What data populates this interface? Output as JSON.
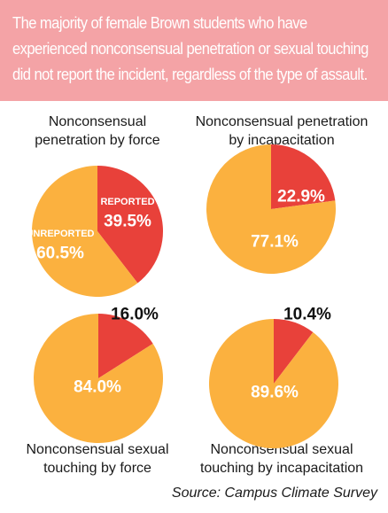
{
  "header": {
    "text": "The majority of female Brown students who have experienced nonconsensual penetration or sexual touching did not report the incident, regardless of the type of assault."
  },
  "colors": {
    "header_bg": "#f4a3a6",
    "reported": "#e8413a",
    "unreported": "#fbb13f"
  },
  "chart_data": [
    {
      "type": "pie",
      "title": "Nonconsensual penetration by force",
      "title_lines": [
        "Nonconsensual",
        "penetration by force"
      ],
      "slices": [
        {
          "name": "REPORTED",
          "value": 39.5,
          "label": "39.5%",
          "color": "#e8413a"
        },
        {
          "name": "UNREPORTED",
          "value": 60.5,
          "label": "60.5%",
          "color": "#fbb13f"
        }
      ]
    },
    {
      "type": "pie",
      "title": "Nonconsensual penetration by incapacitation",
      "title_lines": [
        "Nonconsensual penetration",
        "by incapacitation"
      ],
      "slices": [
        {
          "name": "",
          "value": 22.9,
          "label": "22.9%",
          "color": "#e8413a"
        },
        {
          "name": "",
          "value": 77.1,
          "label": "77.1%",
          "color": "#fbb13f"
        }
      ]
    },
    {
      "type": "pie",
      "title": "Nonconsensual sexual touching by force",
      "title_lines": [
        "Nonconsensual sexual",
        "touching by force"
      ],
      "slices": [
        {
          "name": "",
          "value": 16.0,
          "label": "16.0%",
          "color": "#e8413a"
        },
        {
          "name": "",
          "value": 84.0,
          "label": "84.0%",
          "color": "#fbb13f"
        }
      ]
    },
    {
      "type": "pie",
      "title": "Nonconsensual sexual touching by incapacitation",
      "title_lines": [
        "Nonconsensual sexual",
        "touching by incapacitation"
      ],
      "slices": [
        {
          "name": "",
          "value": 10.4,
          "label": "10.4%",
          "color": "#e8413a"
        },
        {
          "name": "",
          "value": 89.6,
          "label": "89.6%",
          "color": "#fbb13f"
        }
      ]
    }
  ],
  "source": "Source: Campus Climate Survey"
}
